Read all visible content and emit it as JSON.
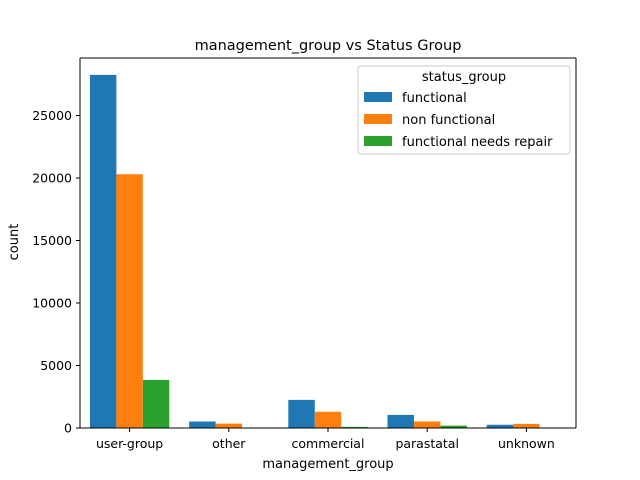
{
  "chart_data": {
    "type": "bar",
    "title": "management_group vs Status Group",
    "xlabel": "management_group",
    "ylabel": "count",
    "categories": [
      "user-group",
      "other",
      "commercial",
      "parastatal",
      "unknown"
    ],
    "series": [
      {
        "name": "functional",
        "color": "#1f77b4",
        "values": [
          28250,
          520,
          2250,
          1050,
          260
        ]
      },
      {
        "name": "non functional",
        "color": "#ff7f0e",
        "values": [
          20300,
          350,
          1300,
          520,
          330
        ]
      },
      {
        "name": "functional needs repair",
        "color": "#2ca02c",
        "values": [
          3850,
          0,
          90,
          190,
          0
        ]
      }
    ],
    "ylim": [
      0,
      29600
    ],
    "yticks": [
      0,
      5000,
      10000,
      15000,
      20000,
      25000
    ],
    "legend": {
      "title": "status_group",
      "position": "top-right"
    },
    "grid": false
  }
}
